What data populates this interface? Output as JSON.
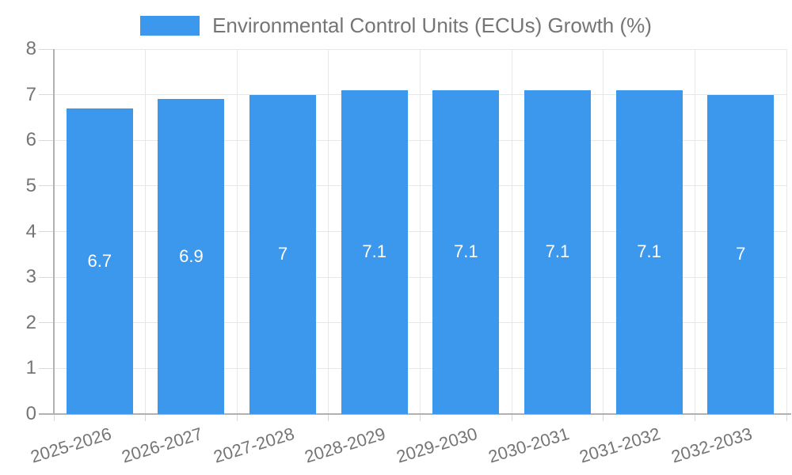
{
  "legend": {
    "label": "Environmental Control Units (ECUs) Growth (%)"
  },
  "colors": {
    "bar": "#3b98ec",
    "bar_label_text": "#ffffff",
    "axis_text": "#757575",
    "gridline": "#e7e7e7",
    "tick": "#d9d9d9",
    "axis_line": "#b1b1b1",
    "background": "#ffffff"
  },
  "chart_data": {
    "type": "bar",
    "title": "Environmental Control Units (ECUs) Growth (%)",
    "categories": [
      "2025-2026",
      "2026-2027",
      "2027-2028",
      "2028-2029",
      "2029-2030",
      "2030-2031",
      "2031-2032",
      "2032-2033"
    ],
    "values": [
      6.7,
      6.9,
      7,
      7.1,
      7.1,
      7.1,
      7.1,
      7
    ],
    "value_labels": [
      "6.7",
      "6.9",
      "7",
      "7.1",
      "7.1",
      "7.1",
      "7.1",
      "7"
    ],
    "series": [
      {
        "name": "Environmental Control Units (ECUs) Growth (%)",
        "values": [
          6.7,
          6.9,
          7,
          7.1,
          7.1,
          7.1,
          7.1,
          7
        ]
      }
    ],
    "xlabel": "",
    "ylabel": "",
    "ylim": [
      0,
      8
    ],
    "yticks": [
      0,
      1,
      2,
      3,
      4,
      5,
      6,
      7,
      8
    ],
    "ytick_step": 1,
    "grid": true,
    "legend_position": "top-center",
    "x_label_rotation_deg": -17,
    "bar_labels_inside": true
  }
}
